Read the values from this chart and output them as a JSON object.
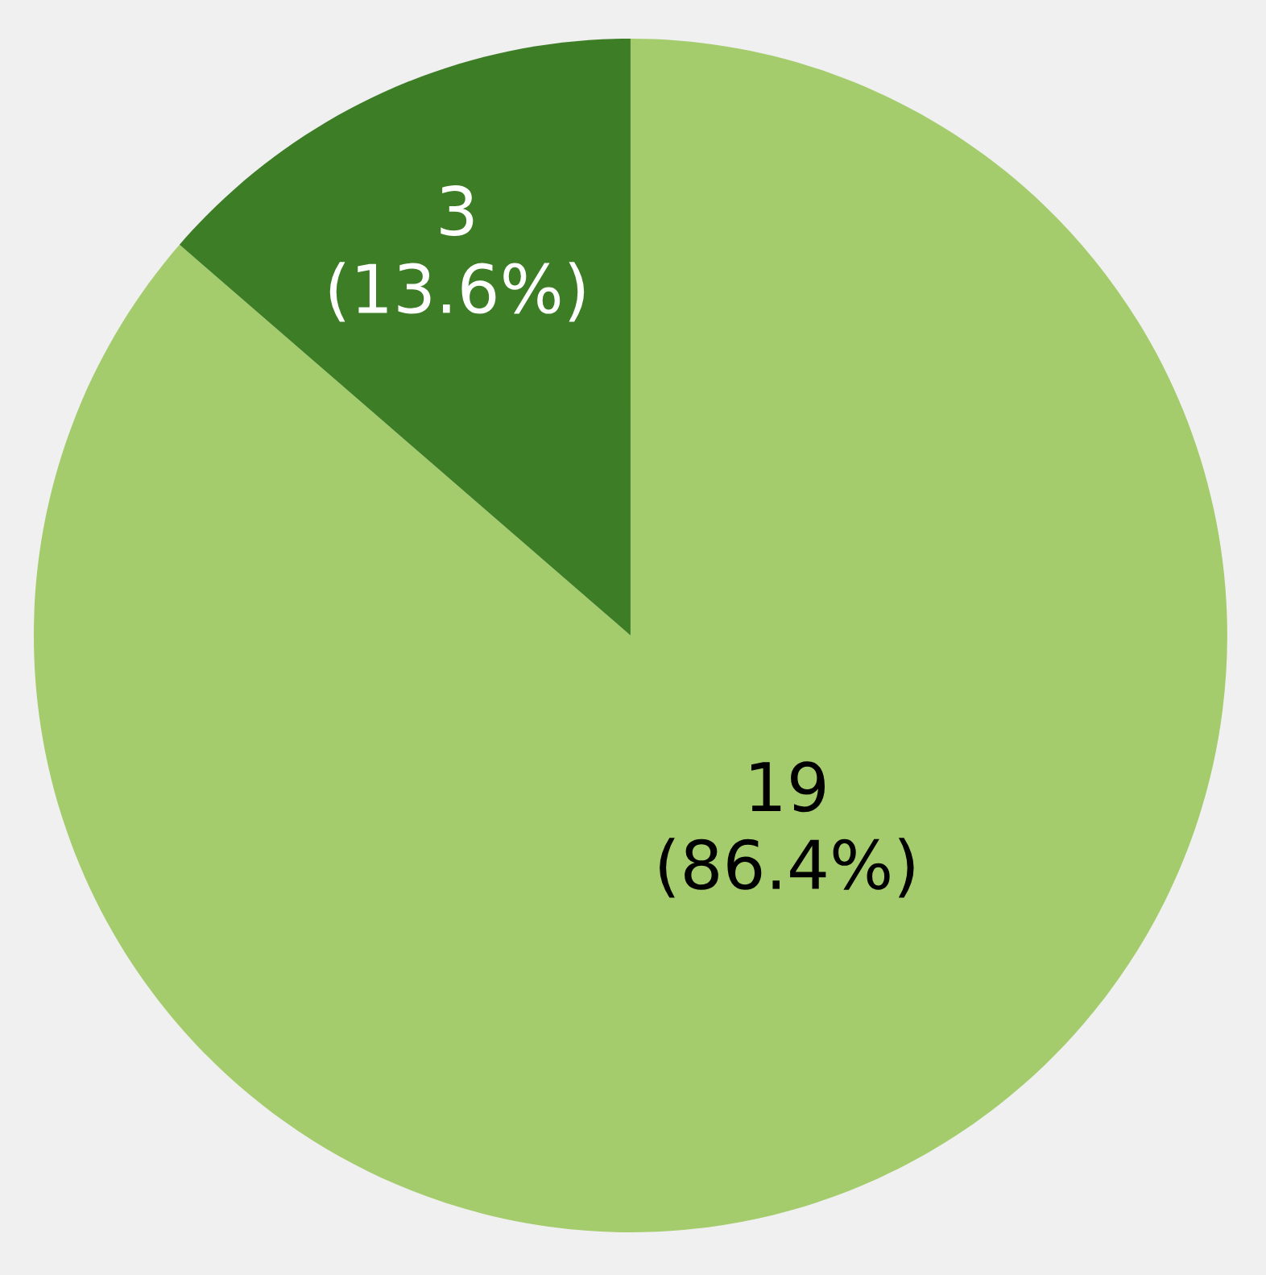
{
  "chart_data": {
    "type": "pie",
    "categories": [
      null,
      null
    ],
    "values": [
      19,
      3
    ],
    "colors": [
      "#a4cc6c",
      "#3d7d26"
    ],
    "value_labels": [
      "19\n(86.4%)",
      "3\n(13.6%)"
    ]
  }
}
